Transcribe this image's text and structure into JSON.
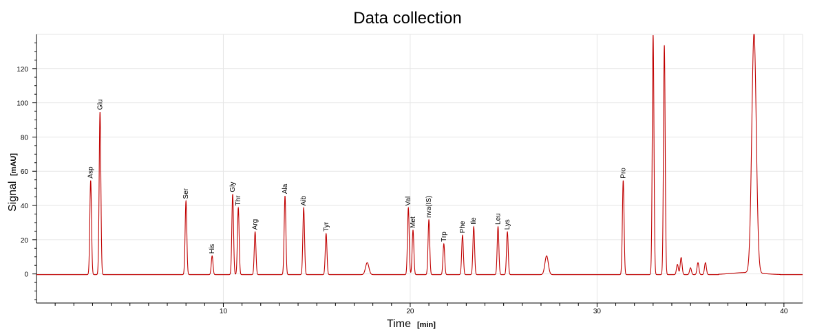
{
  "chart_data": {
    "type": "line",
    "title": "Data collection",
    "xlabel": "Time",
    "xunit": "[min]",
    "ylabel": "Signal",
    "yunit": "[mAU]",
    "xlim": [
      0,
      41
    ],
    "ylim": [
      -17,
      140
    ],
    "xticks": [
      10,
      20,
      30,
      40
    ],
    "yticks": [
      0,
      20,
      40,
      60,
      80,
      100,
      120
    ],
    "grid": true,
    "color": "#c00000",
    "baseline": -0.4,
    "peaks": [
      {
        "label": "Asp",
        "x": 2.9,
        "y": 55
      },
      {
        "label": "Glu",
        "x": 3.4,
        "y": 95
      },
      {
        "label": "Ser",
        "x": 8.0,
        "y": 43
      },
      {
        "label": "His",
        "x": 9.4,
        "y": 11
      },
      {
        "label": "Gly",
        "x": 10.5,
        "y": 47
      },
      {
        "label": "Thr",
        "x": 10.8,
        "y": 39
      },
      {
        "label": "Arg",
        "x": 11.7,
        "y": 25
      },
      {
        "label": "Ala",
        "x": 13.3,
        "y": 46
      },
      {
        "label": "Aib",
        "x": 14.3,
        "y": 39
      },
      {
        "label": "Tyr",
        "x": 15.5,
        "y": 24
      },
      {
        "label": "Val",
        "x": 19.9,
        "y": 39
      },
      {
        "label": "Met",
        "x": 20.15,
        "y": 26
      },
      {
        "label": "nva(IS)",
        "x": 21.0,
        "y": 32
      },
      {
        "label": "Trp",
        "x": 21.8,
        "y": 18
      },
      {
        "label": "Phe",
        "x": 22.8,
        "y": 23
      },
      {
        "label": "Ile",
        "x": 23.4,
        "y": 28
      },
      {
        "label": "Leu",
        "x": 24.7,
        "y": 28
      },
      {
        "label": "Lys",
        "x": 25.2,
        "y": 25
      },
      {
        "label": "Pro",
        "x": 31.4,
        "y": 55
      }
    ],
    "unlabeled_peaks": [
      {
        "x": 17.7,
        "y": 7
      },
      {
        "x": 27.3,
        "y": 11
      },
      {
        "x": 33.0,
        "y": 140
      },
      {
        "x": 33.6,
        "y": 134
      },
      {
        "x": 34.3,
        "y": 6
      },
      {
        "x": 34.5,
        "y": 10
      },
      {
        "x": 35.0,
        "y": 4
      },
      {
        "x": 35.4,
        "y": 7
      },
      {
        "x": 35.8,
        "y": 7
      },
      {
        "x": 38.4,
        "y": 140
      }
    ]
  }
}
